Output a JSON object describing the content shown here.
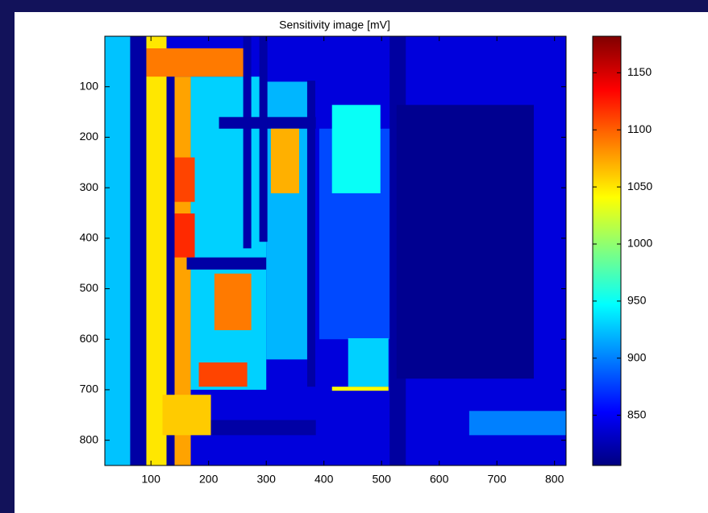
{
  "chart_data": {
    "type": "heatmap",
    "title": "Sensitivity image [mV]",
    "colormap": "jet",
    "y_reversed": true,
    "xlim": [
      20,
      820
    ],
    "ylim": [
      0,
      850
    ],
    "xticks": [
      100,
      200,
      300,
      400,
      500,
      600,
      700,
      800
    ],
    "yticks": [
      100,
      200,
      300,
      400,
      500,
      600,
      700,
      800
    ],
    "clim": [
      806,
      1182
    ],
    "cticks": [
      850,
      900,
      950,
      1000,
      1050,
      1100,
      1150
    ],
    "regions": [
      {
        "x": [
          20,
          820
        ],
        "y": [
          0,
          850
        ],
        "value": 840
      },
      {
        "x": [
          20,
          64
        ],
        "y": [
          0,
          850
        ],
        "value": 925
      },
      {
        "x": [
          64,
          92
        ],
        "y": [
          0,
          850
        ],
        "value": 820
      },
      {
        "x": [
          92,
          127
        ],
        "y": [
          0,
          850
        ],
        "value": 1050
      },
      {
        "x": [
          127,
          141
        ],
        "y": [
          80,
          850
        ],
        "value": 820
      },
      {
        "x": [
          141,
          169
        ],
        "y": [
          80,
          850
        ],
        "value": 1075
      },
      {
        "x": [
          169,
          300
        ],
        "y": [
          80,
          700
        ],
        "value": 930
      },
      {
        "x": [
          92,
          267
        ],
        "y": [
          24,
          80
        ],
        "value": 1090
      },
      {
        "x": [
          260,
          274
        ],
        "y": [
          0,
          420
        ],
        "value": 822
      },
      {
        "x": [
          141,
          176
        ],
        "y": [
          240,
          328
        ],
        "value": 1110
      },
      {
        "x": [
          141,
          176
        ],
        "y": [
          351,
          438
        ],
        "value": 1120
      },
      {
        "x": [
          210,
          274
        ],
        "y": [
          470,
          582
        ],
        "value": 1090
      },
      {
        "x": [
          183,
          267
        ],
        "y": [
          646,
          694
        ],
        "value": 1110
      },
      {
        "x": [
          162,
          343
        ],
        "y": [
          438,
          462
        ],
        "value": 820
      },
      {
        "x": [
          300,
          371
        ],
        "y": [
          90,
          640
        ],
        "value": 920
      },
      {
        "x": [
          218,
          386
        ],
        "y": [
          160,
          183
        ],
        "value": 820
      },
      {
        "x": [
          288,
          302
        ],
        "y": [
          0,
          407
        ],
        "value": 820
      },
      {
        "x": [
          308,
          357
        ],
        "y": [
          183,
          311
        ],
        "value": 1070
      },
      {
        "x": [
          371,
          385
        ],
        "y": [
          88,
          694
        ],
        "value": 820
      },
      {
        "x": [
          392,
          514
        ],
        "y": [
          183,
          600
        ],
        "value": 880
      },
      {
        "x": [
          414,
          498
        ],
        "y": [
          136,
          311
        ],
        "value": 950
      },
      {
        "x": [
          514,
          542
        ],
        "y": [
          0,
          850
        ],
        "value": 818
      },
      {
        "x": [
          526,
          764
        ],
        "y": [
          136,
          678
        ],
        "value": 812
      },
      {
        "x": [
          442,
          512
        ],
        "y": [
          598,
          694
        ],
        "value": 930
      },
      {
        "x": [
          414,
          512
        ],
        "y": [
          694,
          702
        ],
        "value": 1040
      },
      {
        "x": [
          652,
          820
        ],
        "y": [
          742,
          790
        ],
        "value": 900
      },
      {
        "x": [
          120,
          204
        ],
        "y": [
          710,
          790
        ],
        "value": 1060
      },
      {
        "x": [
          204,
          386
        ],
        "y": [
          760,
          790
        ],
        "value": 820
      }
    ]
  }
}
